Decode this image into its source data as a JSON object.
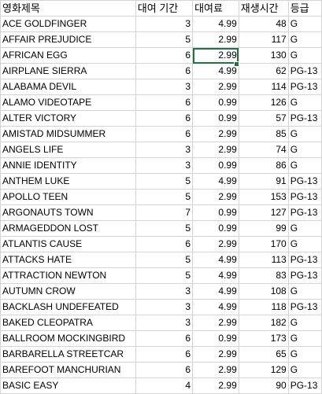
{
  "headers": {
    "title": "영화제목",
    "rental_duration": "대여 기간",
    "rental_rate": "대여료",
    "length": "재생시간",
    "rating": "등급"
  },
  "rows": [
    {
      "title": "ACE GOLDFINGER",
      "rental_duration": "3",
      "rental_rate": "4.99",
      "length": "48",
      "rating": "G"
    },
    {
      "title": "AFFAIR PREJUDICE",
      "rental_duration": "5",
      "rental_rate": "2.99",
      "length": "117",
      "rating": "G"
    },
    {
      "title": "AFRICAN EGG",
      "rental_duration": "6",
      "rental_rate": "2.99",
      "length": "130",
      "rating": "G"
    },
    {
      "title": "AIRPLANE SIERRA",
      "rental_duration": "6",
      "rental_rate": "4.99",
      "length": "62",
      "rating": "PG-13"
    },
    {
      "title": "ALABAMA DEVIL",
      "rental_duration": "3",
      "rental_rate": "2.99",
      "length": "114",
      "rating": "PG-13"
    },
    {
      "title": "ALAMO VIDEOTAPE",
      "rental_duration": "6",
      "rental_rate": "0.99",
      "length": "126",
      "rating": "G"
    },
    {
      "title": "ALTER VICTORY",
      "rental_duration": "6",
      "rental_rate": "0.99",
      "length": "57",
      "rating": "PG-13"
    },
    {
      "title": "AMISTAD MIDSUMMER",
      "rental_duration": "6",
      "rental_rate": "2.99",
      "length": "85",
      "rating": "G"
    },
    {
      "title": "ANGELS LIFE",
      "rental_duration": "3",
      "rental_rate": "2.99",
      "length": "74",
      "rating": "G"
    },
    {
      "title": "ANNIE IDENTITY",
      "rental_duration": "3",
      "rental_rate": "0.99",
      "length": "86",
      "rating": "G"
    },
    {
      "title": "ANTHEM LUKE",
      "rental_duration": "5",
      "rental_rate": "4.99",
      "length": "91",
      "rating": "PG-13"
    },
    {
      "title": "APOLLO TEEN",
      "rental_duration": "5",
      "rental_rate": "2.99",
      "length": "153",
      "rating": "PG-13"
    },
    {
      "title": "ARGONAUTS TOWN",
      "rental_duration": "7",
      "rental_rate": "0.99",
      "length": "127",
      "rating": "PG-13"
    },
    {
      "title": "ARMAGEDDON LOST",
      "rental_duration": "5",
      "rental_rate": "0.99",
      "length": "99",
      "rating": "G"
    },
    {
      "title": "ATLANTIS CAUSE",
      "rental_duration": "6",
      "rental_rate": "2.99",
      "length": "170",
      "rating": "G"
    },
    {
      "title": "ATTACKS HATE",
      "rental_duration": "5",
      "rental_rate": "4.99",
      "length": "113",
      "rating": "PG-13"
    },
    {
      "title": "ATTRACTION NEWTON",
      "rental_duration": "5",
      "rental_rate": "4.99",
      "length": "83",
      "rating": "PG-13"
    },
    {
      "title": "AUTUMN CROW",
      "rental_duration": "3",
      "rental_rate": "4.99",
      "length": "108",
      "rating": "G"
    },
    {
      "title": "BACKLASH UNDEFEATED",
      "rental_duration": "3",
      "rental_rate": "4.99",
      "length": "118",
      "rating": "PG-13"
    },
    {
      "title": "BAKED CLEOPATRA",
      "rental_duration": "3",
      "rental_rate": "2.99",
      "length": "182",
      "rating": "G"
    },
    {
      "title": "BALLROOM MOCKINGBIRD",
      "rental_duration": "6",
      "rental_rate": "0.99",
      "length": "173",
      "rating": "G"
    },
    {
      "title": "BARBARELLA STREETCAR",
      "rental_duration": "6",
      "rental_rate": "2.99",
      "length": "65",
      "rating": "G"
    },
    {
      "title": "BAREFOOT MANCHURIAN",
      "rental_duration": "6",
      "rental_rate": "2.99",
      "length": "129",
      "rating": "G"
    },
    {
      "title": "BASIC EASY",
      "rental_duration": "4",
      "rental_rate": "2.99",
      "length": "90",
      "rating": "PG-13"
    }
  ]
}
